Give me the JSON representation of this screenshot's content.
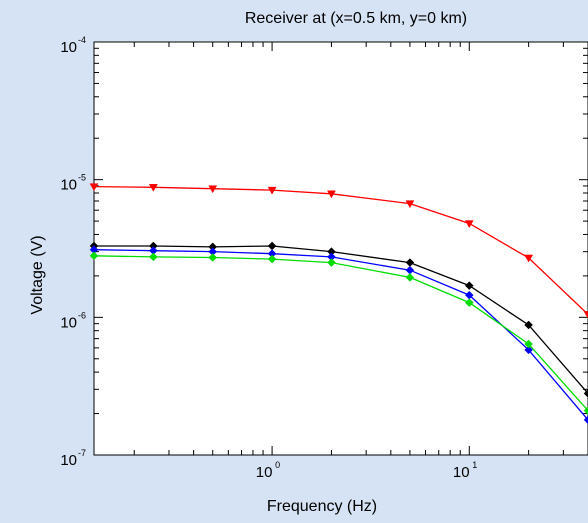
{
  "chart_data": {
    "type": "line",
    "title": "Receiver at (x=0.5 km, y=0 km)",
    "xlabel": "Frequency (Hz)",
    "ylabel": "Voltage (V)",
    "x_scale": "log",
    "y_scale": "log",
    "xlim": [
      0.125,
      40
    ],
    "ylim": [
      1e-07,
      0.0001
    ],
    "x_tick_labels": [
      {
        "base": "10",
        "exp": "0",
        "value": 1
      },
      {
        "base": "10",
        "exp": "1",
        "value": 10
      }
    ],
    "y_tick_labels": [
      {
        "base": "10",
        "exp": "-4",
        "value": 0.0001
      },
      {
        "base": "10",
        "exp": "-5",
        "value": 1e-05
      },
      {
        "base": "10",
        "exp": "-6",
        "value": 1e-06
      },
      {
        "base": "10",
        "exp": "-7",
        "value": 1e-07
      }
    ],
    "grid": false,
    "legend": false,
    "x": [
      0.125,
      0.25,
      0.5,
      1,
      2,
      5,
      10,
      20,
      40
    ],
    "series": [
      {
        "color": "#ff0000",
        "marker": "triangle-down",
        "values": [
          8.9e-06,
          8.8e-06,
          8.6e-06,
          8.4e-06,
          7.9e-06,
          6.7e-06,
          4.8e-06,
          2.7e-06,
          1.05e-06
        ]
      },
      {
        "color": "#000000",
        "marker": "diamond",
        "values": [
          3.3e-06,
          3.3e-06,
          3.25e-06,
          3.3e-06,
          3e-06,
          2.5e-06,
          1.7e-06,
          8.8e-07,
          2.8e-07
        ]
      },
      {
        "color": "#0000ff",
        "marker": "diamond",
        "values": [
          3.1e-06,
          3.05e-06,
          3e-06,
          2.9e-06,
          2.75e-06,
          2.2e-06,
          1.45e-06,
          5.8e-07,
          1.8e-07
        ]
      },
      {
        "color": "#00dd00",
        "marker": "diamond",
        "values": [
          2.8e-06,
          2.75e-06,
          2.72e-06,
          2.65e-06,
          2.5e-06,
          1.95e-06,
          1.28e-06,
          6.4e-07,
          2.1e-07
        ]
      }
    ]
  }
}
